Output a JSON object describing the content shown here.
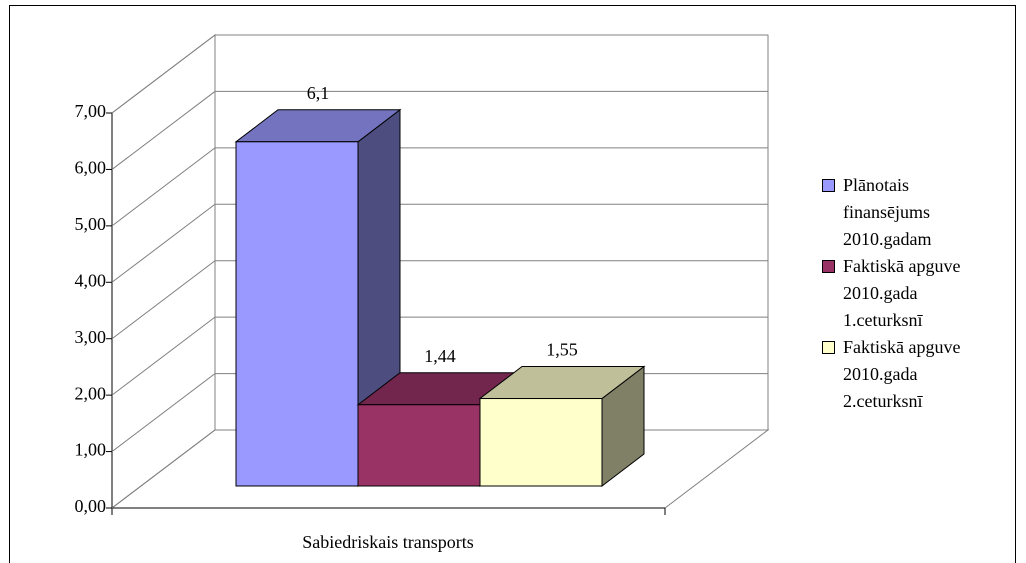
{
  "chart_data": {
    "type": "bar3d",
    "categories": [
      "Sabiedriskais transports"
    ],
    "series": [
      {
        "name": "Plānotais finansējums 2010.gadam",
        "color": "#9999ff",
        "values": [
          6.1
        ],
        "value_labels": [
          "6,1"
        ]
      },
      {
        "name": "Faktiskā apguve 2010.gada 1.ceturksnī",
        "color": "#993366",
        "values": [
          1.44
        ],
        "value_labels": [
          "1,44"
        ]
      },
      {
        "name": "Faktiskā apguve 2010.gada 2.ceturksnī",
        "color": "#ffffcc",
        "values": [
          1.55
        ],
        "value_labels": [
          "1,55"
        ]
      }
    ],
    "ylim": [
      0,
      7
    ],
    "yticks": [
      {
        "value": 0,
        "label": "0,00"
      },
      {
        "value": 1,
        "label": "1,00"
      },
      {
        "value": 2,
        "label": "2,00"
      },
      {
        "value": 3,
        "label": "3,00"
      },
      {
        "value": 4,
        "label": "4,00"
      },
      {
        "value": 5,
        "label": "5,00"
      },
      {
        "value": 6,
        "label": "6,00"
      },
      {
        "value": 7,
        "label": "7,00"
      }
    ],
    "grid": true,
    "legend": "right"
  }
}
